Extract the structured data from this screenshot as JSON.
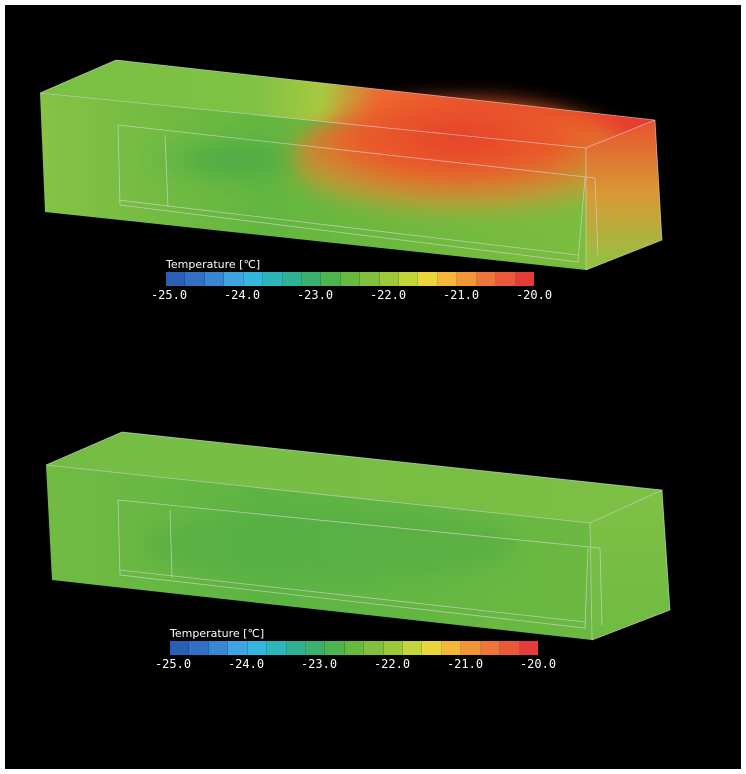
{
  "panels": [
    {
      "legend": {
        "title": "Temperature [℃]",
        "ticks": [
          "-25.0",
          "-24.0",
          "-23.0",
          "-22.0",
          "-21.0",
          "-20.0"
        ]
      },
      "field_summary": "hot-region-right"
    },
    {
      "legend": {
        "title": "Temperature [℃]",
        "ticks": [
          "-25.0",
          "-24.0",
          "-23.0",
          "-22.0",
          "-21.0",
          "-20.0"
        ]
      },
      "field_summary": "uniform-green"
    }
  ],
  "colors": {
    "background": "#000000",
    "colormap": [
      "#2b5fb5",
      "#3170c4",
      "#3987d4",
      "#3ea4e2",
      "#33b7df",
      "#2db6b8",
      "#2fb293",
      "#3cb06f",
      "#4eb44d",
      "#66ba3e",
      "#80c03c",
      "#9cc83a",
      "#c3d53b",
      "#ead53a",
      "#f5b63a",
      "#f3963a",
      "#ef763a",
      "#ea5a3a",
      "#e63d3a"
    ],
    "box_green": "#6fbd3f",
    "box_hot": "#e83b2e",
    "wireframe": "#d9d9d9"
  }
}
